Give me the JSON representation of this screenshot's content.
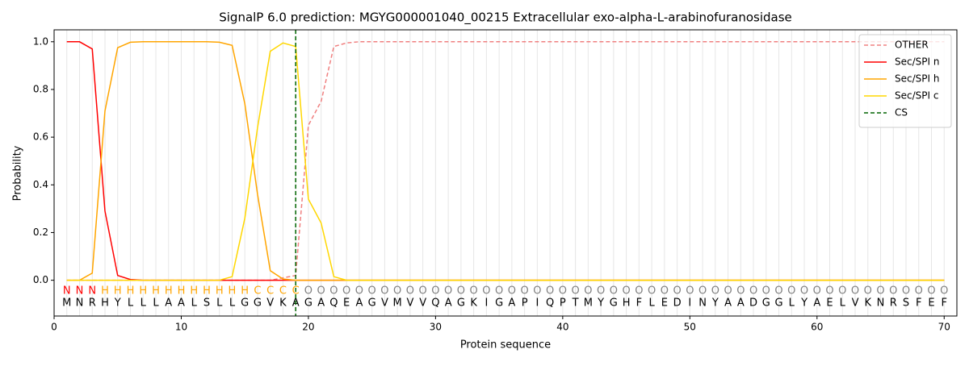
{
  "chart_data": {
    "type": "line",
    "title": "SignalP 6.0 prediction: MGYG000001040_00215 Extracellular exo-alpha-L-arabinofuranosidase",
    "xlabel": "Protein sequence",
    "ylabel": "Probability",
    "x": [
      1,
      2,
      3,
      4,
      5,
      6,
      7,
      8,
      9,
      10,
      11,
      12,
      13,
      14,
      15,
      16,
      17,
      18,
      19,
      20,
      21,
      22,
      23,
      24,
      25,
      26,
      27,
      28,
      29,
      30,
      31,
      32,
      33,
      34,
      35,
      36,
      37,
      38,
      39,
      40,
      41,
      42,
      43,
      44,
      45,
      46,
      47,
      48,
      49,
      50,
      51,
      52,
      53,
      54,
      55,
      56,
      57,
      58,
      59,
      60,
      61,
      62,
      63,
      64,
      65,
      66,
      67,
      68,
      69,
      70
    ],
    "residues": [
      "M",
      "N",
      "R",
      "H",
      "Y",
      "L",
      "L",
      "L",
      "A",
      "A",
      "L",
      "S",
      "L",
      "L",
      "G",
      "G",
      "V",
      "K",
      "A",
      "G",
      "A",
      "Q",
      "E",
      "A",
      "G",
      "V",
      "M",
      "V",
      "V",
      "Q",
      "A",
      "G",
      "K",
      "I",
      "G",
      "A",
      "P",
      "I",
      "Q",
      "P",
      "T",
      "M",
      "Y",
      "G",
      "H",
      "F",
      "L",
      "E",
      "D",
      "I",
      "N",
      "Y",
      "A",
      "A",
      "D",
      "G",
      "G",
      "L",
      "Y",
      "A",
      "E",
      "L",
      "V",
      "K",
      "N",
      "R",
      "S",
      "F",
      "E",
      "F"
    ],
    "labels": [
      "N",
      "N",
      "N",
      "H",
      "H",
      "H",
      "H",
      "H",
      "H",
      "H",
      "H",
      "H",
      "H",
      "H",
      "H",
      "C",
      "C",
      "C",
      "C",
      "O",
      "O",
      "O",
      "O",
      "O",
      "O",
      "O",
      "O",
      "O",
      "O",
      "O",
      "O",
      "O",
      "O",
      "O",
      "O",
      "O",
      "O",
      "O",
      "O",
      "O",
      "O",
      "O",
      "O",
      "O",
      "O",
      "O",
      "O",
      "O",
      "O",
      "O",
      "O",
      "O",
      "O",
      "O",
      "O",
      "O",
      "O",
      "O",
      "O",
      "O",
      "O",
      "O",
      "O",
      "O",
      "O",
      "O",
      "O",
      "O",
      "O",
      "O"
    ],
    "label_colors": {
      "N": "red",
      "H": "orange",
      "C": "orange",
      "O": "gray"
    },
    "series": [
      {
        "name": "OTHER",
        "color": "#f08080",
        "dash": true,
        "values": [
          0,
          0,
          0,
          0,
          0,
          0,
          0,
          0,
          0,
          0,
          0,
          0,
          0,
          0,
          0,
          0,
          0,
          0.01,
          0.02,
          0.65,
          0.75,
          0.98,
          0.995,
          1,
          1,
          1,
          1,
          1,
          1,
          1,
          1,
          1,
          1,
          1,
          1,
          1,
          1,
          1,
          1,
          1,
          1,
          1,
          1,
          1,
          1,
          1,
          1,
          1,
          1,
          1,
          1,
          1,
          1,
          1,
          1,
          1,
          1,
          1,
          1,
          1,
          1,
          1,
          1,
          1,
          1,
          1,
          1,
          1,
          1,
          1
        ]
      },
      {
        "name": "Sec/SPI n",
        "color": "red",
        "dash": false,
        "values": [
          1,
          1,
          0.97,
          0.29,
          0.02,
          0.003,
          0,
          0,
          0,
          0,
          0,
          0,
          0,
          0,
          0,
          0,
          0,
          0,
          0,
          0,
          0,
          0,
          0,
          0,
          0,
          0,
          0,
          0,
          0,
          0,
          0,
          0,
          0,
          0,
          0,
          0,
          0,
          0,
          0,
          0,
          0,
          0,
          0,
          0,
          0,
          0,
          0,
          0,
          0,
          0,
          0,
          0,
          0,
          0,
          0,
          0,
          0,
          0,
          0,
          0,
          0,
          0,
          0,
          0,
          0,
          0,
          0,
          0,
          0,
          0
        ]
      },
      {
        "name": "Sec/SPI h",
        "color": "orange",
        "dash": false,
        "values": [
          0,
          0,
          0.03,
          0.71,
          0.975,
          0.998,
          1,
          1,
          1,
          1,
          1,
          1,
          0.998,
          0.985,
          0.74,
          0.36,
          0.04,
          0.005,
          0,
          0,
          0,
          0,
          0,
          0,
          0,
          0,
          0,
          0,
          0,
          0,
          0,
          0,
          0,
          0,
          0,
          0,
          0,
          0,
          0,
          0,
          0,
          0,
          0,
          0,
          0,
          0,
          0,
          0,
          0,
          0,
          0,
          0,
          0,
          0,
          0,
          0,
          0,
          0,
          0,
          0,
          0,
          0,
          0,
          0,
          0,
          0,
          0,
          0,
          0,
          0
        ]
      },
      {
        "name": "Sec/SPI c",
        "color": "gold",
        "dash": false,
        "values": [
          0,
          0,
          0,
          0,
          0,
          0,
          0,
          0,
          0,
          0,
          0,
          0,
          0,
          0.015,
          0.26,
          0.64,
          0.96,
          0.995,
          0.98,
          0.34,
          0.24,
          0.015,
          0,
          0,
          0,
          0,
          0,
          0,
          0,
          0,
          0,
          0,
          0,
          0,
          0,
          0,
          0,
          0,
          0,
          0,
          0,
          0,
          0,
          0,
          0,
          0,
          0,
          0,
          0,
          0,
          0,
          0,
          0,
          0,
          0,
          0,
          0,
          0,
          0,
          0,
          0,
          0,
          0,
          0,
          0,
          0,
          0,
          0,
          0,
          0
        ]
      }
    ],
    "cs": {
      "name": "CS",
      "x": 19,
      "color": "darkgreen"
    },
    "xlim": [
      0,
      71
    ],
    "ylim": [
      -0.15,
      1.05
    ],
    "xticks": [
      0,
      10,
      20,
      30,
      40,
      50,
      60,
      70
    ],
    "yticks": [
      {
        "value": 0,
        "label": "0.0"
      },
      0.2,
      0.4,
      0.6,
      0.8,
      {
        "value": 1,
        "label": "1.0"
      }
    ],
    "legend": "upper right"
  }
}
